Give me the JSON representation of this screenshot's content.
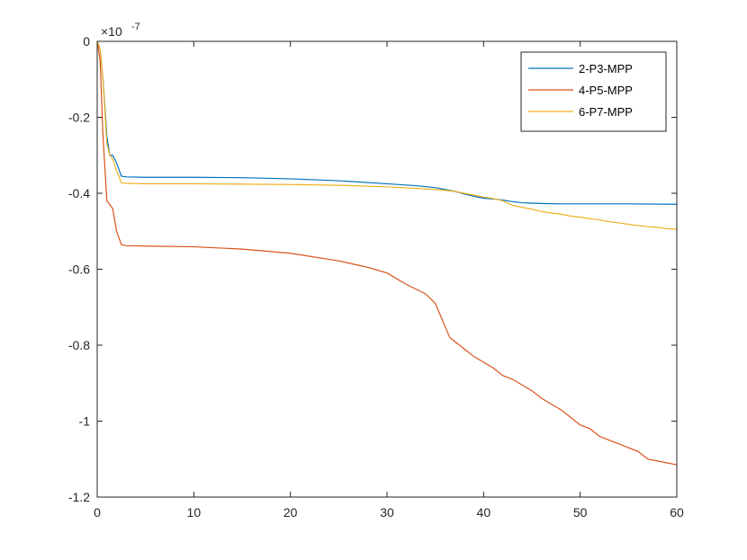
{
  "chart_data": {
    "type": "line",
    "title": "",
    "xlabel": "",
    "ylabel": "",
    "xlim": [
      0,
      60
    ],
    "ylim": [
      -1.2,
      0
    ],
    "y_exponent_label": "×10",
    "y_exponent_power": "-7",
    "x_ticks": [
      0,
      10,
      20,
      30,
      40,
      50,
      60
    ],
    "x_tick_labels": [
      "0",
      "10",
      "20",
      "30",
      "40",
      "50",
      "60"
    ],
    "y_ticks": [
      0,
      -0.2,
      -0.4,
      -0.6,
      -0.8,
      -1,
      -1.2
    ],
    "y_tick_labels": [
      "0",
      "-0.2",
      "-0.4",
      "-0.6",
      "-0.8",
      "-1",
      "-1.2"
    ],
    "grid": false,
    "legend_position": "top-right",
    "series": [
      {
        "name": "2-P3-MPP",
        "color": "#0072BD",
        "x": [
          0,
          0.3,
          0.6,
          1.0,
          1.3,
          1.6,
          2.0,
          2.5,
          3,
          5,
          10,
          15,
          20,
          25,
          30,
          33,
          35,
          37,
          38,
          39,
          40,
          41,
          42,
          43,
          44,
          45,
          46,
          48,
          50,
          55,
          60
        ],
        "y": [
          0,
          -0.02,
          -0.1,
          -0.25,
          -0.3,
          -0.3,
          -0.32,
          -0.355,
          -0.357,
          -0.358,
          -0.358,
          -0.359,
          -0.362,
          -0.367,
          -0.375,
          -0.38,
          -0.385,
          -0.395,
          -0.402,
          -0.408,
          -0.413,
          -0.415,
          -0.418,
          -0.422,
          -0.425,
          -0.426,
          -0.427,
          -0.428,
          -0.428,
          -0.428,
          -0.429
        ]
      },
      {
        "name": "4-P5-MPP",
        "color": "#D95319",
        "x": [
          0,
          0.3,
          0.6,
          1.0,
          1.3,
          1.6,
          2.0,
          2.5,
          3,
          5,
          10,
          15,
          20,
          25,
          28,
          30,
          32,
          34,
          35,
          36,
          36.5,
          37,
          38,
          39,
          40,
          41,
          42,
          43,
          44,
          45,
          46,
          47,
          48,
          49,
          50,
          51,
          52,
          53,
          54,
          55,
          56,
          57,
          58,
          59,
          60
        ],
        "y": [
          0,
          -0.05,
          -0.25,
          -0.42,
          -0.43,
          -0.44,
          -0.5,
          -0.535,
          -0.538,
          -0.539,
          -0.541,
          -0.547,
          -0.558,
          -0.578,
          -0.595,
          -0.61,
          -0.64,
          -0.665,
          -0.69,
          -0.75,
          -0.78,
          -0.79,
          -0.81,
          -0.83,
          -0.845,
          -0.86,
          -0.88,
          -0.89,
          -0.905,
          -0.92,
          -0.94,
          -0.955,
          -0.97,
          -0.99,
          -1.01,
          -1.02,
          -1.04,
          -1.05,
          -1.06,
          -1.07,
          -1.08,
          -1.1,
          -1.105,
          -1.11,
          -1.115
        ]
      },
      {
        "name": "6-P7-MPP",
        "color": "#EDB120",
        "x": [
          0,
          0.3,
          0.6,
          1.0,
          1.3,
          1.6,
          2.0,
          2.5,
          3,
          5,
          10,
          15,
          20,
          25,
          30,
          35,
          37,
          38,
          39,
          40,
          41,
          42,
          43,
          44,
          45,
          46,
          47,
          48,
          49,
          50,
          51,
          52,
          53,
          54,
          55,
          56,
          57,
          58,
          59,
          60
        ],
        "y": [
          0,
          -0.02,
          -0.1,
          -0.27,
          -0.3,
          -0.31,
          -0.34,
          -0.372,
          -0.374,
          -0.375,
          -0.375,
          -0.376,
          -0.377,
          -0.379,
          -0.383,
          -0.39,
          -0.395,
          -0.4,
          -0.405,
          -0.41,
          -0.414,
          -0.42,
          -0.432,
          -0.437,
          -0.442,
          -0.448,
          -0.452,
          -0.455,
          -0.46,
          -0.463,
          -0.467,
          -0.47,
          -0.475,
          -0.478,
          -0.482,
          -0.485,
          -0.488,
          -0.49,
          -0.493,
          -0.495
        ]
      }
    ]
  }
}
